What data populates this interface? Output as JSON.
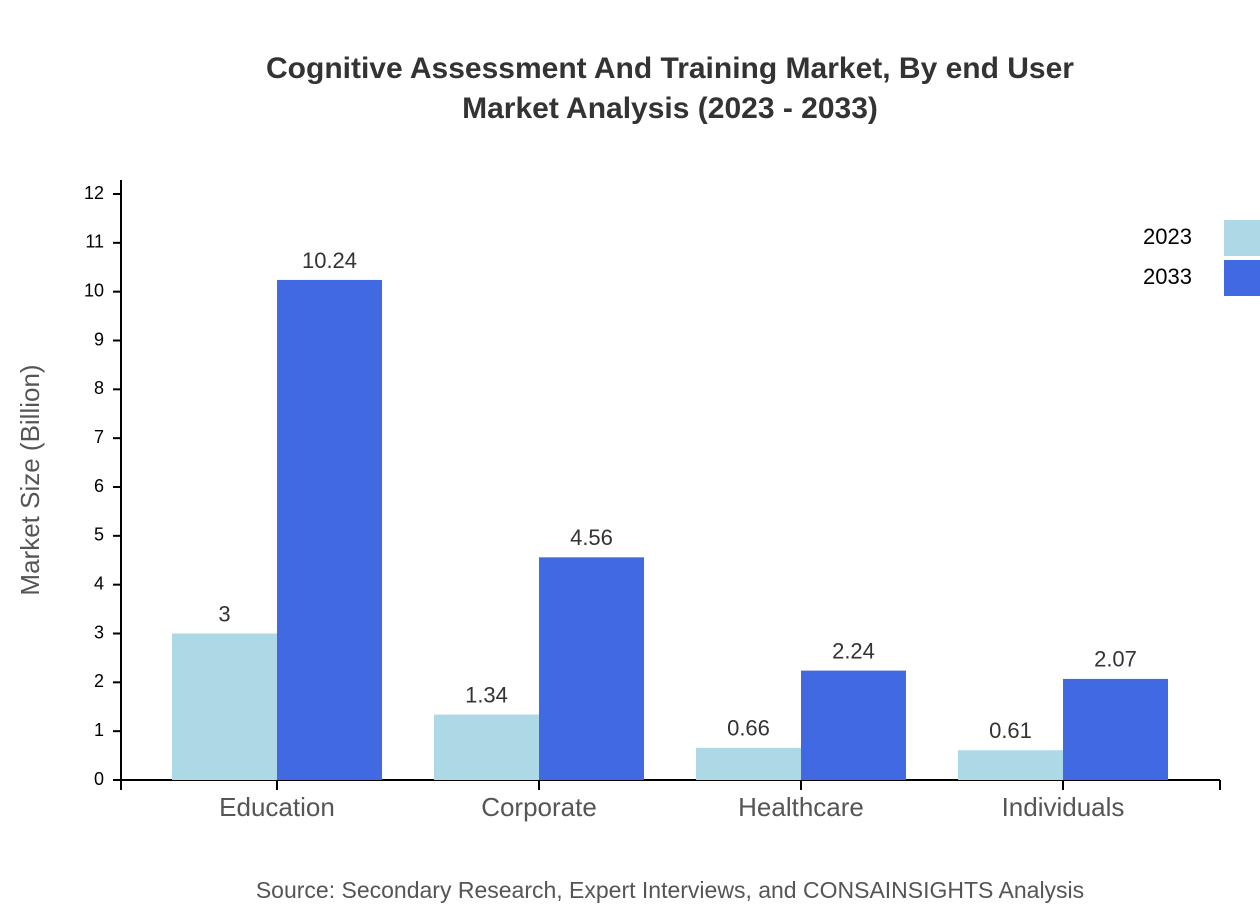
{
  "chart_data": {
    "type": "bar",
    "title": [
      "Cognitive Assessment And Training Market, By end User",
      "Market Analysis (2023 - 2033)"
    ],
    "y_label": "Market Size (Billion)",
    "source": "Source: Secondary Research, Expert Interviews, and CONSAINSIGHTS Analysis",
    "categories": [
      "Education",
      "Corporate",
      "Healthcare",
      "Individuals"
    ],
    "series": [
      {
        "name": "2023",
        "color": "#add8e6",
        "values": [
          3,
          1.34,
          0.66,
          0.61
        ]
      },
      {
        "name": "2033",
        "color": "#4169e1",
        "values": [
          10.24,
          4.56,
          2.24,
          2.07
        ]
      }
    ],
    "ylim": [
      0,
      12
    ],
    "yticks": [
      0,
      1,
      2,
      3,
      4,
      5,
      6,
      7,
      8,
      9,
      10,
      11,
      12
    ],
    "legend": "top-right"
  }
}
